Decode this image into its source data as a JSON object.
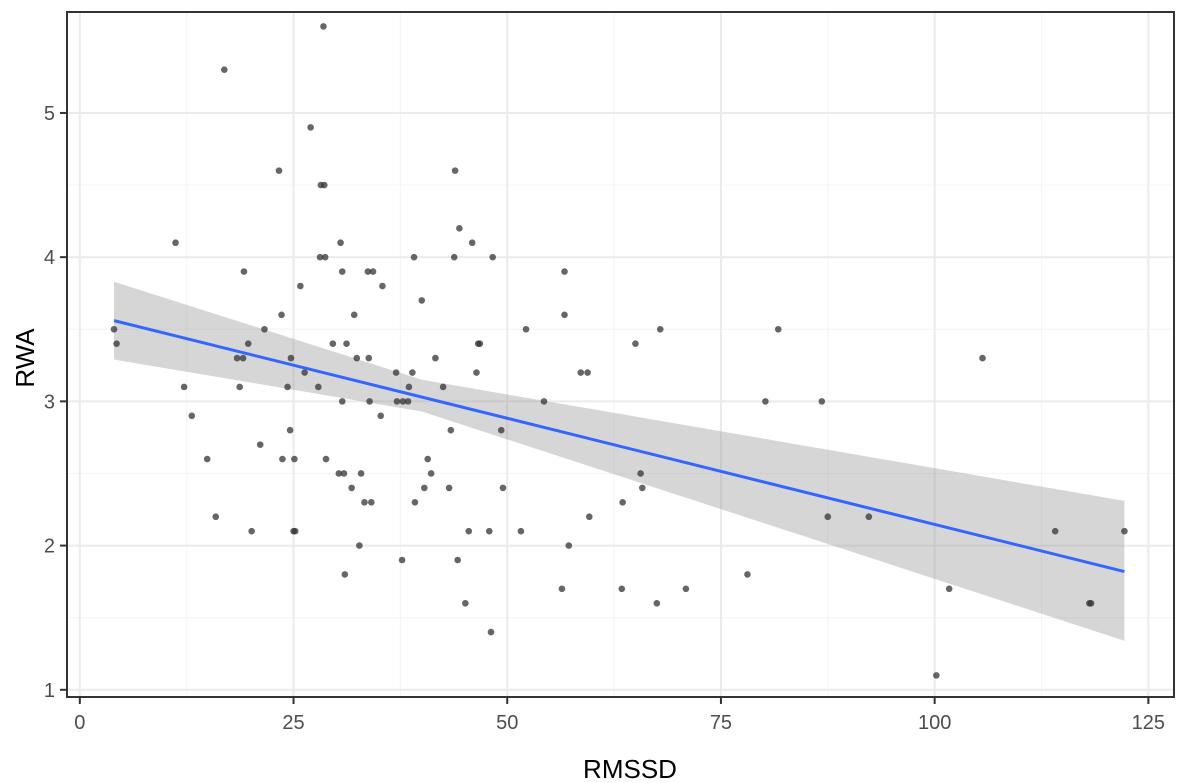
{
  "chart_data": {
    "type": "scatter",
    "xlabel": "RMSSD",
    "ylabel": "RWA",
    "xlim": [
      -1.5,
      128
    ],
    "ylim": [
      0.95,
      5.7
    ],
    "x_ticks": [
      0,
      25,
      50,
      75,
      100,
      125
    ],
    "x_tick_labels": [
      "0",
      "25",
      "50",
      "75",
      "100",
      "125"
    ],
    "y_ticks": [
      1,
      2,
      3,
      4,
      5
    ],
    "y_tick_labels": [
      "1",
      "2",
      "3",
      "4",
      "5"
    ],
    "grid": true,
    "legend": "none",
    "series": [
      {
        "points": [
          [
            4,
            3.5
          ],
          [
            4.3,
            3.4
          ],
          [
            11.2,
            4.1
          ],
          [
            12.2,
            3.1
          ],
          [
            13.1,
            2.9
          ],
          [
            14.9,
            2.6
          ],
          [
            15.9,
            2.2
          ],
          [
            16.9,
            5.3
          ],
          [
            18.4,
            3.3
          ],
          [
            18.7,
            3.1
          ],
          [
            19.1,
            3.3
          ],
          [
            19.2,
            3.9
          ],
          [
            19.7,
            3.4
          ],
          [
            20.1,
            2.1
          ],
          [
            21.1,
            2.7
          ],
          [
            21.6,
            3.5
          ],
          [
            23.3,
            4.6
          ],
          [
            23.6,
            3.6
          ],
          [
            23.7,
            2.6
          ],
          [
            24.3,
            3.1
          ],
          [
            24.6,
            2.8
          ],
          [
            24.7,
            3.3
          ],
          [
            25,
            2.1
          ],
          [
            25.1,
            2.6
          ],
          [
            25.2,
            2.1
          ],
          [
            25.8,
            3.8
          ],
          [
            26.3,
            3.2
          ],
          [
            27,
            4.9
          ],
          [
            27.9,
            3.1
          ],
          [
            28.2,
            4.5
          ],
          [
            28.1,
            4
          ],
          [
            28.5,
            5.6
          ],
          [
            28.6,
            4.5
          ],
          [
            28.7,
            4
          ],
          [
            28.8,
            2.6
          ],
          [
            29.6,
            3.4
          ],
          [
            30.3,
            2.5
          ],
          [
            30.5,
            4.1
          ],
          [
            30.7,
            3.9
          ],
          [
            30.7,
            3
          ],
          [
            30.9,
            2.5
          ],
          [
            31,
            1.8
          ],
          [
            31.2,
            3.4
          ],
          [
            31.8,
            2.4
          ],
          [
            32.1,
            3.6
          ],
          [
            32.4,
            3.3
          ],
          [
            32.7,
            2
          ],
          [
            32.9,
            2.5
          ],
          [
            33.3,
            2.3
          ],
          [
            33.7,
            3.9
          ],
          [
            33.8,
            3.3
          ],
          [
            33.9,
            3
          ],
          [
            34.1,
            2.3
          ],
          [
            34.3,
            3.9
          ],
          [
            35.2,
            2.9
          ],
          [
            35.4,
            3.8
          ],
          [
            37,
            3.2
          ],
          [
            37.1,
            3
          ],
          [
            37.7,
            1.9
          ],
          [
            37.8,
            3
          ],
          [
            38.4,
            3
          ],
          [
            38.5,
            3.1
          ],
          [
            38.9,
            3.2
          ],
          [
            39.1,
            4
          ],
          [
            39.2,
            2.3
          ],
          [
            40,
            3.7
          ],
          [
            40.3,
            2.4
          ],
          [
            40.7,
            2.6
          ],
          [
            41.1,
            2.5
          ],
          [
            41.6,
            3.3
          ],
          [
            42.5,
            3.1
          ],
          [
            43.2,
            2.4
          ],
          [
            43.4,
            2.8
          ],
          [
            43.8,
            4
          ],
          [
            43.9,
            4.6
          ],
          [
            44.2,
            1.9
          ],
          [
            44.4,
            4.2
          ],
          [
            45.1,
            1.6
          ],
          [
            45.5,
            2.1
          ],
          [
            45.9,
            4.1
          ],
          [
            46.4,
            3.2
          ],
          [
            46.6,
            3.4
          ],
          [
            46.8,
            3.4
          ],
          [
            47.9,
            2.1
          ],
          [
            48.1,
            1.4
          ],
          [
            48.3,
            4
          ],
          [
            49.3,
            2.8
          ],
          [
            49.5,
            2.4
          ],
          [
            51.6,
            2.1
          ],
          [
            52.2,
            3.5
          ],
          [
            54.3,
            3
          ],
          [
            56.4,
            1.7
          ],
          [
            56.7,
            3.9
          ],
          [
            56.7,
            3.6
          ],
          [
            57.2,
            2
          ],
          [
            58.6,
            3.2
          ],
          [
            59.4,
            3.2
          ],
          [
            59.6,
            2.2
          ],
          [
            63.4,
            1.7
          ],
          [
            63.5,
            2.3
          ],
          [
            65,
            3.4
          ],
          [
            65.6,
            2.5
          ],
          [
            65.8,
            2.4
          ],
          [
            67.5,
            1.6
          ],
          [
            67.9,
            3.5
          ],
          [
            70.9,
            1.7
          ],
          [
            78.1,
            1.8
          ],
          [
            80.2,
            3
          ],
          [
            81.7,
            3.5
          ],
          [
            86.8,
            3
          ],
          [
            87.5,
            2.2
          ],
          [
            92.3,
            2.2
          ],
          [
            100.2,
            1.1
          ],
          [
            101.7,
            1.7
          ],
          [
            105.6,
            3.3
          ],
          [
            114.1,
            2.1
          ],
          [
            118.1,
            1.6
          ],
          [
            118.3,
            1.6
          ],
          [
            122.2,
            2.1
          ]
        ]
      }
    ],
    "fit": {
      "x": [
        4,
        122.2
      ],
      "y": [
        3.56,
        1.82
      ],
      "ci_lower": [
        3.29,
        1.34
      ],
      "ci_upper": [
        3.83,
        2.31
      ],
      "ci_mid_x": 40,
      "ci_mid_lower": 2.93,
      "ci_mid_upper": 3.15
    },
    "colors": {
      "points": "#333333",
      "fit_line": "#3366ff",
      "ci_band": "#999999",
      "grid_major": "#ebebeb",
      "grid_minor": "#f5f5f5",
      "panel_border": "#333333"
    }
  }
}
